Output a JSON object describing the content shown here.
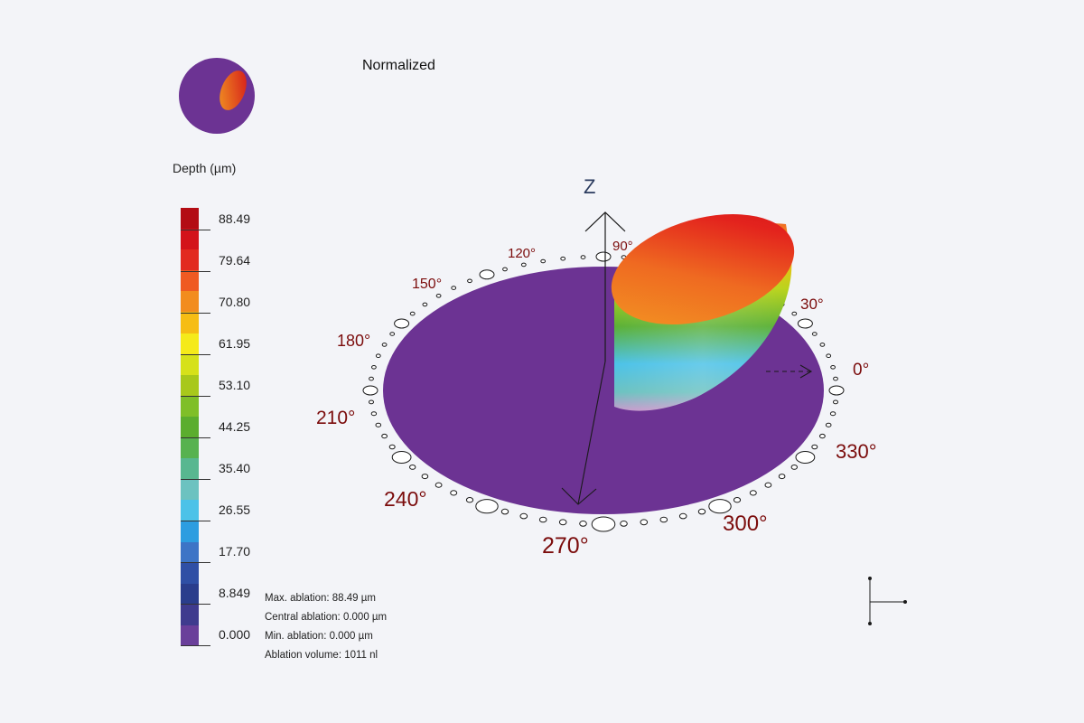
{
  "view": {
    "title": "Normalized",
    "z_axis_label": "Z"
  },
  "legend": {
    "title": "Depth (µm)",
    "values": [
      "88.49",
      "79.64",
      "70.80",
      "61.95",
      "53.10",
      "44.25",
      "35.40",
      "26.55",
      "17.70",
      "8.849",
      "0.000"
    ],
    "colors": [
      "#b30c14",
      "#d3131a",
      "#e22a1f",
      "#ef5a22",
      "#f28c1e",
      "#f6bd14",
      "#f5ea1a",
      "#d6e11a",
      "#a8c81b",
      "#7fbf28",
      "#5bad2e",
      "#57b24f",
      "#58b790",
      "#6cc2c0",
      "#4cc2e8",
      "#2d9de0",
      "#3d74c6",
      "#2f4fa5",
      "#2a3d8c",
      "#3f3b8e",
      "#6a3f9a"
    ]
  },
  "stats": {
    "max_ablation": "Max. ablation: 88.49 µm",
    "central_ablation": "Central ablation: 0.000 µm",
    "min_ablation": "Min. ablation: 0.000 µm",
    "ablation_volume": "Ablation volume: 1011 nl"
  },
  "angles": [
    {
      "label": "0°"
    },
    {
      "label": "30°"
    },
    {
      "label": "90°"
    },
    {
      "label": "120°"
    },
    {
      "label": "150°"
    },
    {
      "label": "180°"
    },
    {
      "label": "210°"
    },
    {
      "label": "240°"
    },
    {
      "label": "270°"
    },
    {
      "label": "300°"
    },
    {
      "label": "330°"
    }
  ],
  "colors": {
    "disk": "#6c3393",
    "angle_text": "#7b0c0c",
    "background": "#f3f4f8"
  }
}
